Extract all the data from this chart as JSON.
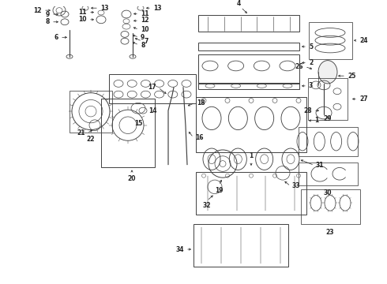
{
  "bg_color": "#ffffff",
  "line_color": "#404040",
  "label_color": "#222222",
  "fig_width": 4.9,
  "fig_height": 3.6,
  "dpi": 100
}
